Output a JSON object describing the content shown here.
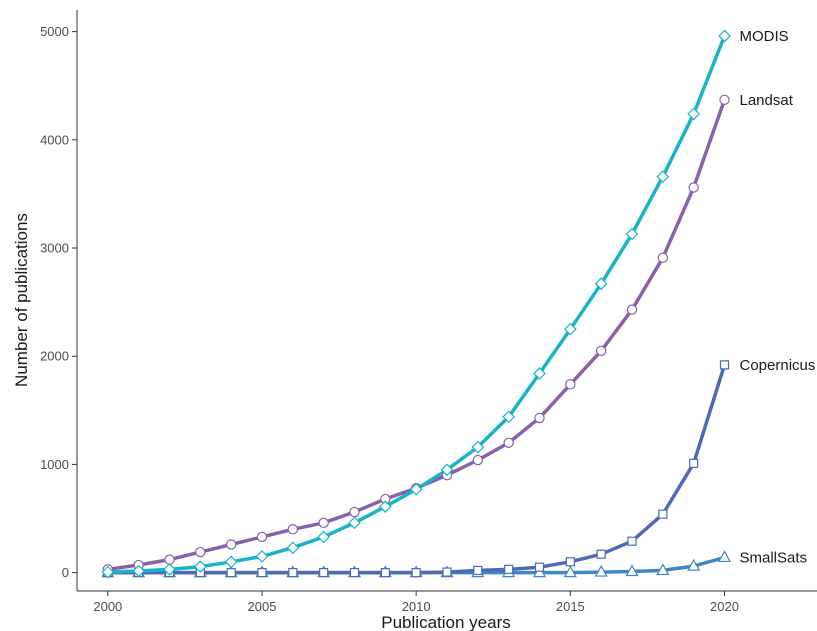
{
  "chart_data": {
    "type": "line",
    "title": "",
    "xlabel": "Publication years",
    "ylabel": "Number of publications",
    "xlim": [
      1999,
      2023
    ],
    "ylim": [
      -170,
      5200
    ],
    "x_ticks": [
      2000,
      2005,
      2010,
      2015,
      2020
    ],
    "y_ticks": [
      0,
      1000,
      2000,
      3000,
      4000,
      5000
    ],
    "grid": false,
    "legend": "direct labels at line ends",
    "x": [
      2000,
      2001,
      2002,
      2003,
      2004,
      2005,
      2006,
      2007,
      2008,
      2009,
      2010,
      2011,
      2012,
      2013,
      2014,
      2015,
      2016,
      2017,
      2018,
      2019,
      2020
    ],
    "series": [
      {
        "name": "MODIS",
        "color": "#17b3c6",
        "marker": "diamond",
        "values": [
          5,
          15,
          30,
          55,
          100,
          150,
          230,
          330,
          460,
          610,
          770,
          950,
          1160,
          1440,
          1840,
          2250,
          2670,
          3130,
          3660,
          4240,
          4960
        ]
      },
      {
        "name": "Landsat",
        "color": "#8a5fac",
        "marker": "circle",
        "values": [
          30,
          70,
          120,
          190,
          260,
          330,
          400,
          460,
          560,
          680,
          780,
          900,
          1040,
          1200,
          1430,
          1740,
          2050,
          2430,
          2910,
          3560,
          4370
        ]
      },
      {
        "name": "Copernicus",
        "color": "#4c6bb3",
        "marker": "square",
        "values": [
          0,
          0,
          0,
          0,
          0,
          0,
          0,
          0,
          0,
          0,
          0,
          5,
          20,
          30,
          50,
          100,
          170,
          290,
          540,
          1010,
          1920
        ]
      },
      {
        "name": "SmallSats",
        "color": "#3e87c6",
        "marker": "triangle",
        "values": [
          0,
          0,
          0,
          0,
          0,
          0,
          0,
          0,
          0,
          0,
          0,
          0,
          0,
          0,
          0,
          0,
          5,
          10,
          20,
          60,
          140
        ]
      }
    ]
  }
}
